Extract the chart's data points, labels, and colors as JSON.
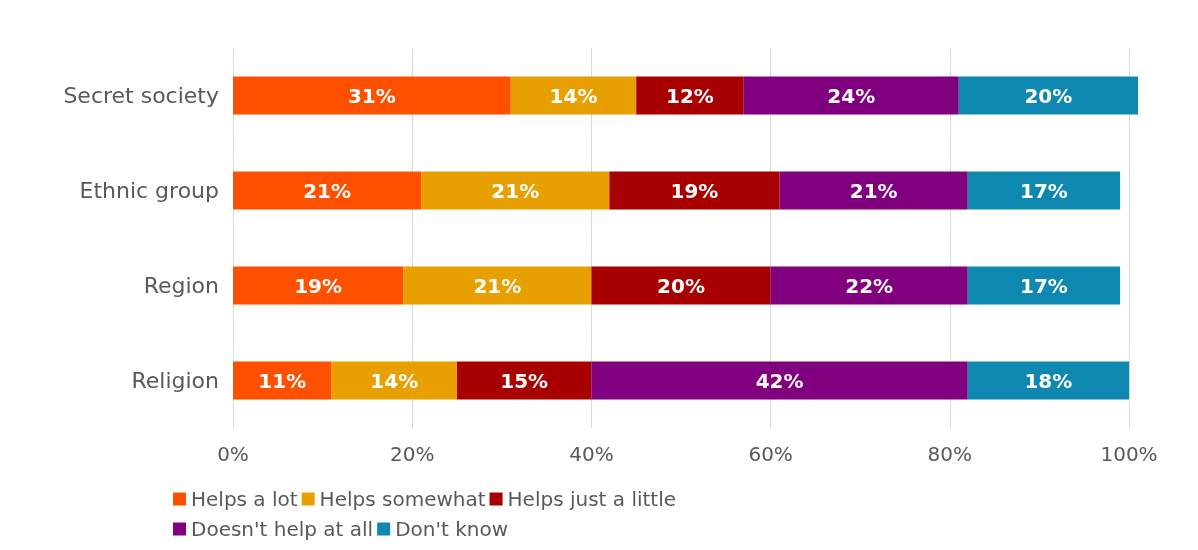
{
  "chart_data": {
    "type": "bar",
    "orientation": "horizontal",
    "stacked": true,
    "categories": [
      "Secret society",
      "Ethnic group",
      "Region",
      "Religion"
    ],
    "series": [
      {
        "name": "Helps a lot",
        "color": "#ff5000",
        "values": [
          31,
          21,
          19,
          11
        ],
        "value_labels": [
          "31%",
          "21%",
          "19%",
          "11%"
        ]
      },
      {
        "name": "Helps somewhat",
        "color": "#e8a000",
        "values": [
          14,
          21,
          21,
          14
        ],
        "value_labels": [
          "14%",
          "21%",
          "21%",
          "14%"
        ]
      },
      {
        "name": "Helps just a little",
        "color": "#a80000",
        "values": [
          12,
          19,
          20,
          15
        ],
        "value_labels": [
          "12%",
          "19%",
          "20%",
          "15%"
        ]
      },
      {
        "name": "Doesn't help at all",
        "color": "#800080",
        "values": [
          24,
          21,
          22,
          42
        ],
        "value_labels": [
          "24%",
          "21%",
          "22%",
          "42%"
        ]
      },
      {
        "name": "Don't know",
        "color": "#0e88b0",
        "values": [
          20,
          17,
          17,
          18
        ],
        "value_labels": [
          "20%",
          "17%",
          "17%",
          "18%"
        ]
      }
    ],
    "xlim": [
      0,
      101
    ],
    "xticks": [
      {
        "value": 0,
        "label": "0%"
      },
      {
        "value": 20,
        "label": "20%"
      },
      {
        "value": 40,
        "label": "40%"
      },
      {
        "value": 60,
        "label": "60%"
      },
      {
        "value": 80,
        "label": "80%"
      },
      {
        "value": 100,
        "label": "100%"
      }
    ],
    "grid": "x",
    "legend": "bottom"
  }
}
